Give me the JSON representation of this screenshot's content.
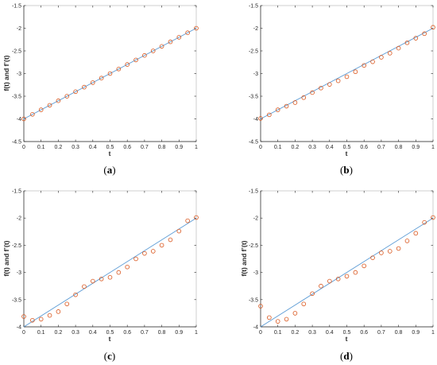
{
  "colors": {
    "line": "#5b9bd5",
    "marker": "#d95319",
    "axis": "#262626",
    "frame": "#b0b0b0"
  },
  "chart_data": [
    {
      "id": "a",
      "panel_label": "(a)",
      "type": "scatter",
      "xlabel": "t",
      "ylabel": "f(t) and f’(t)",
      "xlim": [
        0,
        1
      ],
      "ylim": [
        -4.5,
        -1.5
      ],
      "xticks": [
        0,
        0.1,
        0.2,
        0.3,
        0.4,
        0.5,
        0.6,
        0.7,
        0.8,
        0.9,
        1
      ],
      "xtick_labels": [
        "0",
        "0.1",
        "0.2",
        "0.3",
        "0.4",
        "0.5",
        "0.6",
        "0.7",
        "0.8",
        "0.9",
        "1"
      ],
      "yticks": [
        -4.5,
        -4,
        -3.5,
        -3,
        -2.5,
        -2,
        -1.5
      ],
      "ytick_labels": [
        "-4.5",
        "-4",
        "-3.5",
        "-3",
        "-2.5",
        "-2",
        "-1.5"
      ],
      "line": {
        "x": [
          0,
          1
        ],
        "y": [
          -4,
          -2
        ]
      },
      "points": {
        "x": [
          0,
          0.05,
          0.1,
          0.15,
          0.2,
          0.25,
          0.3,
          0.35,
          0.4,
          0.45,
          0.5,
          0.55,
          0.6,
          0.65,
          0.7,
          0.75,
          0.8,
          0.85,
          0.9,
          0.95,
          1
        ],
        "y": [
          -4,
          -3.9,
          -3.8,
          -3.7,
          -3.6,
          -3.5,
          -3.4,
          -3.3,
          -3.2,
          -3.1,
          -3,
          -2.9,
          -2.8,
          -2.7,
          -2.6,
          -2.5,
          -2.4,
          -2.3,
          -2.2,
          -2.1,
          -2
        ]
      }
    },
    {
      "id": "b",
      "panel_label": "(b)",
      "type": "scatter",
      "xlabel": "t",
      "ylabel": "",
      "xlim": [
        0,
        1
      ],
      "ylim": [
        -4.5,
        -1.5
      ],
      "xticks": [
        0,
        0.1,
        0.2,
        0.3,
        0.4,
        0.5,
        0.6,
        0.7,
        0.8,
        0.9,
        1
      ],
      "xtick_labels": [
        "0",
        "0.1",
        "0.2",
        "0.3",
        "0.4",
        "0.5",
        "0.6",
        "0.7",
        "0.8",
        "0.9",
        "1"
      ],
      "yticks": [
        -4.5,
        -4,
        -3.5,
        -3,
        -2.5,
        -2,
        -1.5
      ],
      "ytick_labels": [
        "-4.5",
        "-4",
        "-3.5",
        "-3",
        "-2.5",
        "-2",
        "-1.5"
      ],
      "line": {
        "x": [
          0,
          1
        ],
        "y": [
          -4,
          -2
        ]
      },
      "points": {
        "x": [
          0,
          0.05,
          0.1,
          0.15,
          0.2,
          0.25,
          0.3,
          0.35,
          0.4,
          0.45,
          0.5,
          0.55,
          0.6,
          0.65,
          0.7,
          0.75,
          0.8,
          0.85,
          0.9,
          0.95,
          1
        ],
        "y": [
          -3.99,
          -3.91,
          -3.8,
          -3.72,
          -3.64,
          -3.53,
          -3.42,
          -3.32,
          -3.24,
          -3.16,
          -3.07,
          -2.96,
          -2.82,
          -2.74,
          -2.64,
          -2.55,
          -2.44,
          -2.32,
          -2.22,
          -2.12,
          -1.98
        ]
      }
    },
    {
      "id": "c",
      "panel_label": "(c)",
      "type": "scatter",
      "xlabel": "t",
      "ylabel": "f(t) and f’(t)",
      "xlim": [
        0,
        1
      ],
      "ylim": [
        -4,
        -1.5
      ],
      "xticks": [
        0,
        0.1,
        0.2,
        0.3,
        0.4,
        0.5,
        0.6,
        0.7,
        0.8,
        0.9,
        1
      ],
      "xtick_labels": [
        "0",
        "0.1",
        "0.2",
        "0.3",
        "0.4",
        "0.5",
        "0.6",
        "0.7",
        "0.8",
        "0.9",
        "1"
      ],
      "yticks": [
        -4,
        -3.5,
        -3,
        -2.5,
        -2,
        -1.5
      ],
      "ytick_labels": [
        "-4",
        "-3.5",
        "-3",
        "-2.5",
        "-2",
        "-1.5"
      ],
      "line": {
        "x": [
          0,
          1
        ],
        "y": [
          -4,
          -2
        ]
      },
      "points": {
        "x": [
          0,
          0.05,
          0.1,
          0.15,
          0.2,
          0.25,
          0.3,
          0.35,
          0.4,
          0.45,
          0.5,
          0.55,
          0.6,
          0.65,
          0.7,
          0.75,
          0.8,
          0.85,
          0.9,
          0.95,
          1
        ],
        "y": [
          -3.81,
          -3.88,
          -3.86,
          -3.79,
          -3.72,
          -3.58,
          -3.41,
          -3.26,
          -3.16,
          -3.12,
          -3.09,
          -3.0,
          -2.9,
          -2.75,
          -2.65,
          -2.61,
          -2.5,
          -2.4,
          -2.24,
          -2.05,
          -1.99
        ]
      }
    },
    {
      "id": "d",
      "panel_label": "(d)",
      "type": "scatter",
      "xlabel": "t",
      "ylabel": "f(t) and f’(t)",
      "xlim": [
        0,
        1
      ],
      "ylim": [
        -4,
        -1.5
      ],
      "xticks": [
        0,
        0.1,
        0.2,
        0.3,
        0.4,
        0.5,
        0.6,
        0.7,
        0.8,
        0.9,
        1
      ],
      "xtick_labels": [
        "0",
        "0.1",
        "0.2",
        "0.3",
        "0.4",
        "0.5",
        "0.6",
        "0.7",
        "0.8",
        "0.9",
        "1"
      ],
      "yticks": [
        -4,
        -3.5,
        -3,
        -2.5,
        -2,
        -1.5
      ],
      "ytick_labels": [
        "-4",
        "-3.5",
        "-3",
        "-2.5",
        "-2",
        "-1.5"
      ],
      "line": {
        "x": [
          0,
          1
        ],
        "y": [
          -4,
          -2
        ]
      },
      "points": {
        "x": [
          0,
          0.05,
          0.1,
          0.15,
          0.2,
          0.25,
          0.3,
          0.35,
          0.4,
          0.45,
          0.5,
          0.55,
          0.6,
          0.65,
          0.7,
          0.75,
          0.8,
          0.85,
          0.9,
          0.95,
          1
        ],
        "y": [
          -3.62,
          -3.83,
          -3.9,
          -3.86,
          -3.75,
          -3.58,
          -3.39,
          -3.25,
          -3.16,
          -3.12,
          -3.07,
          -3.0,
          -2.88,
          -2.73,
          -2.64,
          -2.61,
          -2.56,
          -2.42,
          -2.28,
          -2.08,
          -1.99
        ]
      }
    }
  ]
}
